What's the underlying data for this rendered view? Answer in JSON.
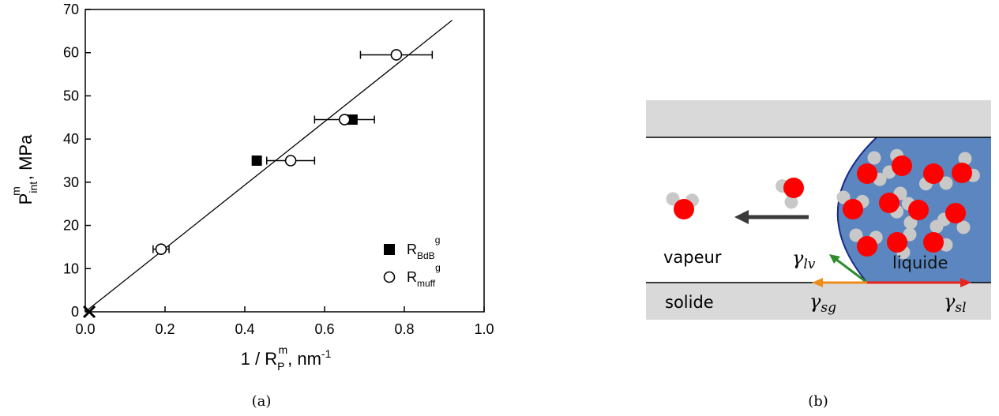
{
  "chart_data": {
    "type": "scatter",
    "y_label": {
      "main": "P",
      "sub": "int",
      "sup": "m",
      "unit": ", MPa"
    },
    "x_label": {
      "main": "1 / R",
      "sub": "P",
      "sup": "m",
      "unit": ",  nm",
      "unit_sup": "-1"
    },
    "xlim": [
      0,
      1.0
    ],
    "ylim": [
      0,
      70
    ],
    "xticks": [
      {
        "value": 0,
        "label": "0.0"
      },
      0.2,
      0.4,
      0.6,
      0.8,
      {
        "value": 1.0,
        "label": "1.0"
      }
    ],
    "yticks": [
      0,
      10,
      20,
      30,
      40,
      50,
      60,
      70
    ],
    "series": [
      {
        "name": "R",
        "name_sub": "BdB",
        "name_sup": "g",
        "marker": "square",
        "color": "#000000",
        "x": [
          0.43,
          0.67
        ],
        "values": [
          35,
          44.5
        ]
      },
      {
        "name": "R",
        "name_sub": "muff",
        "name_sup": "g",
        "marker": "circle",
        "color": "#000000",
        "x": [
          0.19,
          0.515,
          0.65,
          0.78
        ],
        "values": [
          14.5,
          35,
          44.5,
          59.5
        ],
        "xerr": [
          0.02,
          0.06,
          0.075,
          0.09
        ]
      }
    ],
    "fit": {
      "x": [
        0,
        0.92
      ],
      "values": [
        0,
        67.5
      ]
    },
    "origin_marker": {
      "x": 0.01,
      "value": 0
    }
  },
  "caption_a": "(a)",
  "diagram": {
    "vapour": "vapeur",
    "liquid": "liquide",
    "solid": "solide",
    "gamma_lv": {
      "symbol": "γ",
      "sub": "lv"
    },
    "gamma_sg": {
      "symbol": "γ",
      "sub": "sg"
    },
    "gamma_sl": {
      "symbol": "γ",
      "sub": "sl"
    }
  },
  "caption_b": "(b)"
}
